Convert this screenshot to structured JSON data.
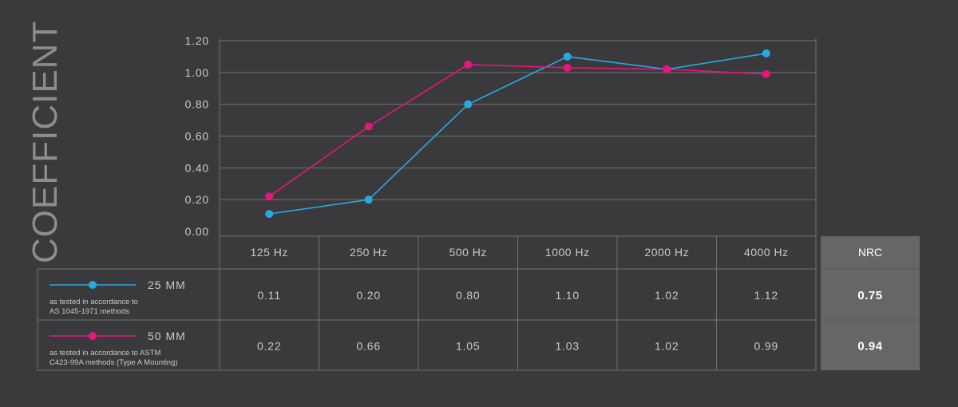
{
  "chart_data": {
    "type": "line",
    "ylabel": "COEFFICIENT",
    "ylim": [
      0,
      1.2
    ],
    "y_ticks": [
      "0.00",
      "0.20",
      "0.40",
      "0.60",
      "0.80",
      "1.00",
      "1.20"
    ],
    "categories": [
      "125 Hz",
      "250 Hz",
      "500 Hz",
      "1000 Hz",
      "2000 Hz",
      "4000 Hz"
    ],
    "grid": true,
    "series": [
      {
        "name": "25 MM",
        "note_line1": "as tested in accordance to",
        "note_line2": "AS 1045-1971 methods",
        "color": "#29a8e0",
        "values": [
          0.11,
          0.2,
          0.8,
          1.1,
          1.02,
          1.12
        ],
        "labels": [
          "0.11",
          "0.20",
          "0.80",
          "1.10",
          "1.02",
          "1.12"
        ],
        "nrc": "0.75"
      },
      {
        "name": "50 MM",
        "note_line1": "as tested in accordance to ASTM",
        "note_line2": "C423-99A methods (Type A Mounting)",
        "color": "#e6157f",
        "values": [
          0.22,
          0.66,
          1.05,
          1.03,
          1.02,
          0.99
        ],
        "labels": [
          "0.22",
          "0.66",
          "1.05",
          "1.03",
          "1.02",
          "0.99"
        ],
        "nrc": "0.94"
      }
    ],
    "nrc_header": "NRC"
  },
  "colors": {
    "background": "#3a3a3c",
    "grid": "#707072",
    "nrc_fill": "#666668",
    "text": "#c9c9cb"
  }
}
